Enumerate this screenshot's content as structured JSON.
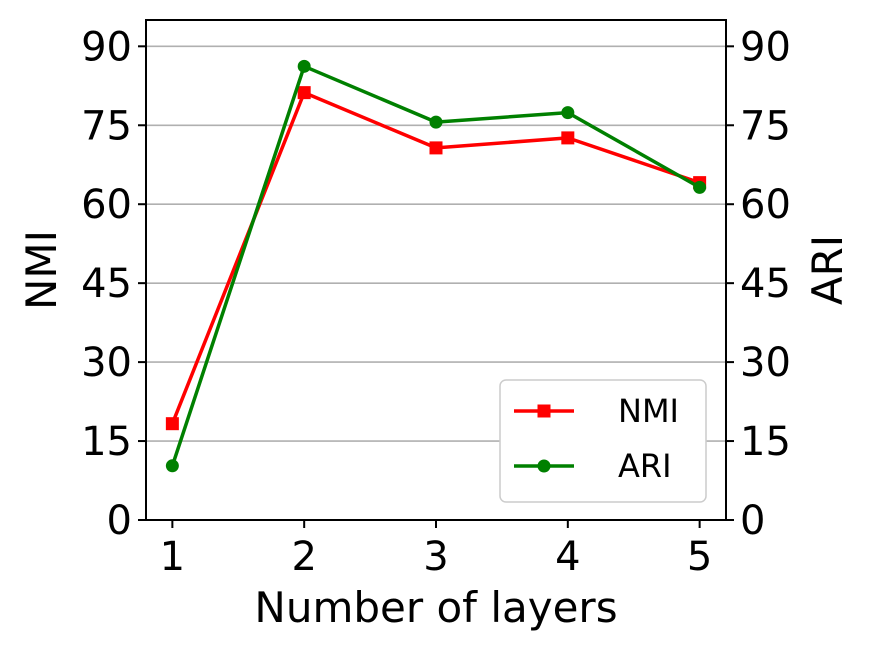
{
  "chart_data": {
    "type": "line",
    "title": "",
    "xlabel": "Number of layers",
    "ylabel": "NMI",
    "ylabel_right": "ARI",
    "x": [
      1,
      2,
      3,
      4,
      5
    ],
    "xticks": [
      "1",
      "2",
      "3",
      "4",
      "5"
    ],
    "yticks": [
      "0",
      "15",
      "30",
      "45",
      "60",
      "75",
      "90"
    ],
    "ylim": [
      0,
      95
    ],
    "grid": "horizontal",
    "legend_position": "lower-right",
    "series": [
      {
        "name": "NMI",
        "color": "#ff0000",
        "marker": "square",
        "values": [
          18.3,
          81.2,
          70.7,
          72.6,
          64.1
        ]
      },
      {
        "name": "ARI",
        "color": "#008000",
        "marker": "circle",
        "values": [
          10.3,
          86.2,
          75.6,
          77.4,
          63.2
        ]
      }
    ]
  }
}
